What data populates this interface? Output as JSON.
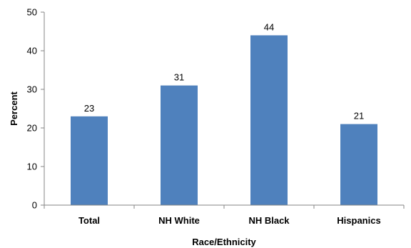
{
  "chart_data": {
    "type": "bar",
    "categories": [
      "Total",
      "NH White",
      "NH Black",
      "Hispanics"
    ],
    "values": [
      23,
      31,
      44,
      21
    ],
    "data_labels": [
      "23",
      "31",
      "44",
      "21"
    ],
    "xlabel": "Race/Ethnicity",
    "ylabel": "Percent",
    "ylim": [
      0,
      50
    ],
    "yticks": [
      0,
      10,
      20,
      30,
      40,
      50
    ],
    "ytick_labels": [
      "0",
      "10",
      "20",
      "30",
      "40",
      "50"
    ],
    "grid": false,
    "legend": "none",
    "bar_color": "#4F81BD",
    "axis_color": "#868686"
  }
}
